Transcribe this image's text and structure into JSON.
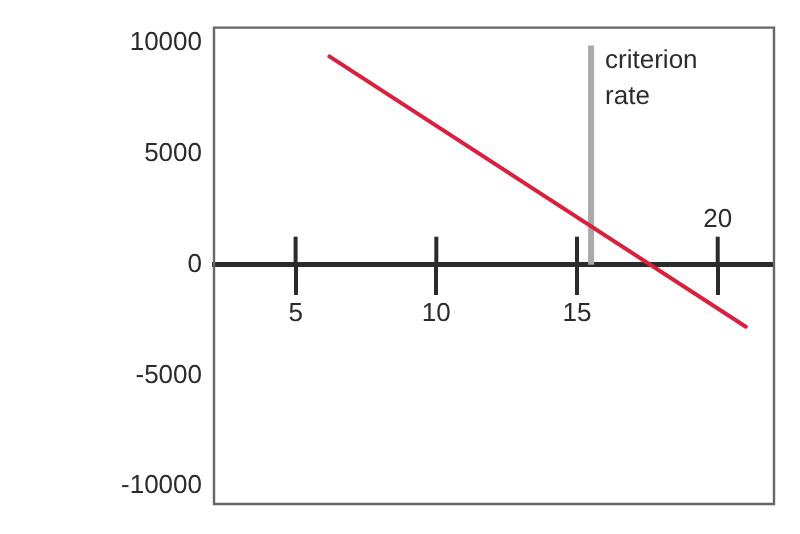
{
  "chart_data": {
    "type": "line",
    "series": [
      {
        "color": "#d8203f",
        "x": [
          6.2,
          21
        ],
        "values": [
          9400,
          -2800
        ]
      }
    ],
    "xlim": [
      2.1,
      22
    ],
    "xticks": [
      5,
      10,
      15,
      {
        "value": 20,
        "label": null
      }
    ],
    "annotations": [
      "20"
    ],
    "ylim": [
      -10800,
      10700
    ],
    "yticks": [
      -10000,
      -5000,
      0,
      5000,
      10000
    ],
    "ref_lines": [
      {
        "axis": "x",
        "value": 15.5,
        "label": "criterion rate",
        "color": "#aaaaaa"
      }
    ],
    "grid": false,
    "legend": false,
    "marker": "none",
    "line_style": "solid"
  }
}
